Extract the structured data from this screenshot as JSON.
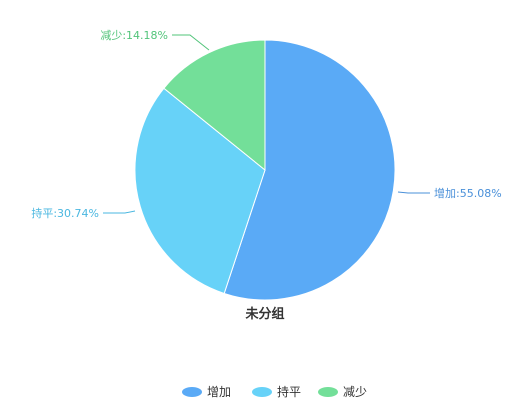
{
  "chart_data": {
    "type": "pie",
    "title": "未分组",
    "start_angle_deg": 0,
    "direction": "clockwise",
    "slices": [
      {
        "name": "增加",
        "value": 55.08,
        "label": "增加:55.08%",
        "color": "#5aaaf6",
        "label_color": "#4a90d9"
      },
      {
        "name": "持平",
        "value": 30.74,
        "label": "持平:30.74%",
        "color": "#67d2f8",
        "label_color": "#4ab7e0"
      },
      {
        "name": "减少",
        "value": 14.18,
        "label": "减少:14.18%",
        "color": "#73df99",
        "label_color": "#52c47a"
      }
    ],
    "legend": {
      "position": "bottom-center",
      "items": [
        "增加",
        "持平",
        "减少"
      ]
    }
  }
}
